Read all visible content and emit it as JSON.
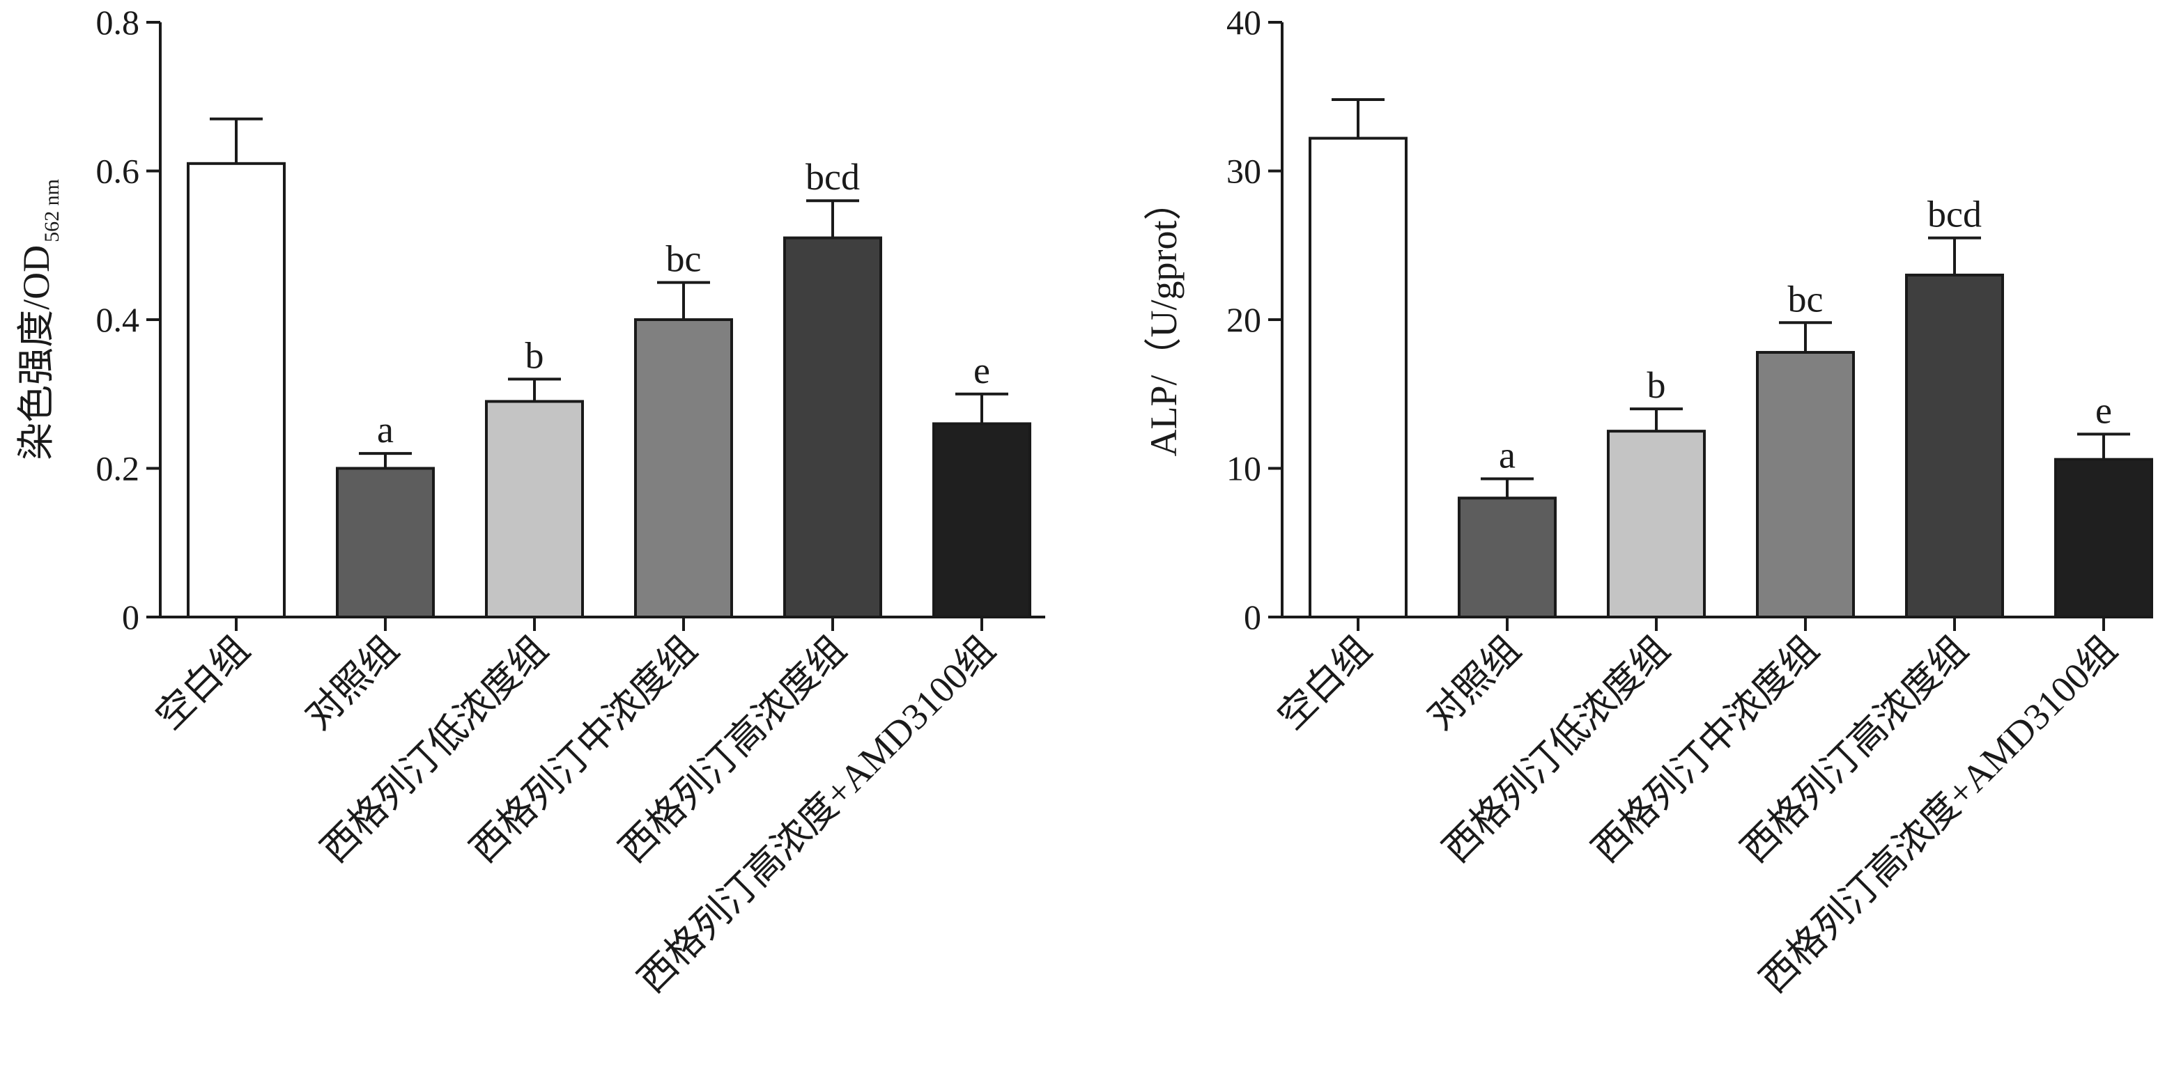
{
  "chart_data": [
    {
      "type": "bar",
      "ylabel": "染色强度/OD",
      "ylabel_subscript": "562 nm",
      "ylim": [
        0,
        0.8
      ],
      "yticks": [
        "0",
        "0.2",
        "0.4",
        "0.6",
        "0.8"
      ],
      "ytick_values": [
        0,
        0.2,
        0.4,
        0.6,
        0.8
      ],
      "categories": [
        "空白组",
        "对照组",
        "西格列汀低浓度组",
        "西格列汀中浓度组",
        "西格列汀高浓度组",
        "西格列汀高浓度+AMD3100组"
      ],
      "values": [
        0.61,
        0.2,
        0.29,
        0.4,
        0.51,
        0.26
      ],
      "errors": [
        0.06,
        0.02,
        0.03,
        0.05,
        0.05,
        0.04
      ],
      "significance": [
        "",
        "a",
        "b",
        "bc",
        "bcd",
        "e"
      ],
      "bar_colors": [
        "#ffffff",
        "#5d5d5d",
        "#c4c4c4",
        "#808080",
        "#3f3f3f",
        "#1f1f1f"
      ],
      "grid": false
    },
    {
      "type": "bar",
      "ylabel": "ALP/（U/gprot）",
      "ylim": [
        0,
        40
      ],
      "yticks": [
        "0",
        "10",
        "20",
        "30",
        "40"
      ],
      "ytick_values": [
        0,
        10,
        20,
        30,
        40
      ],
      "categories": [
        "空白组",
        "对照组",
        "西格列汀低浓度组",
        "西格列汀中浓度组",
        "西格列汀高浓度组",
        "西格列汀高浓度+AMD3100组"
      ],
      "values": [
        32.2,
        8.0,
        12.5,
        17.8,
        23.0,
        10.6
      ],
      "errors": [
        2.6,
        1.3,
        1.5,
        2.0,
        2.5,
        1.7
      ],
      "significance": [
        "",
        "a",
        "b",
        "bc",
        "bcd",
        "e"
      ],
      "bar_colors": [
        "#ffffff",
        "#5d5d5d",
        "#c4c4c4",
        "#808080",
        "#3f3f3f",
        "#1f1f1f"
      ],
      "grid": false
    }
  ]
}
